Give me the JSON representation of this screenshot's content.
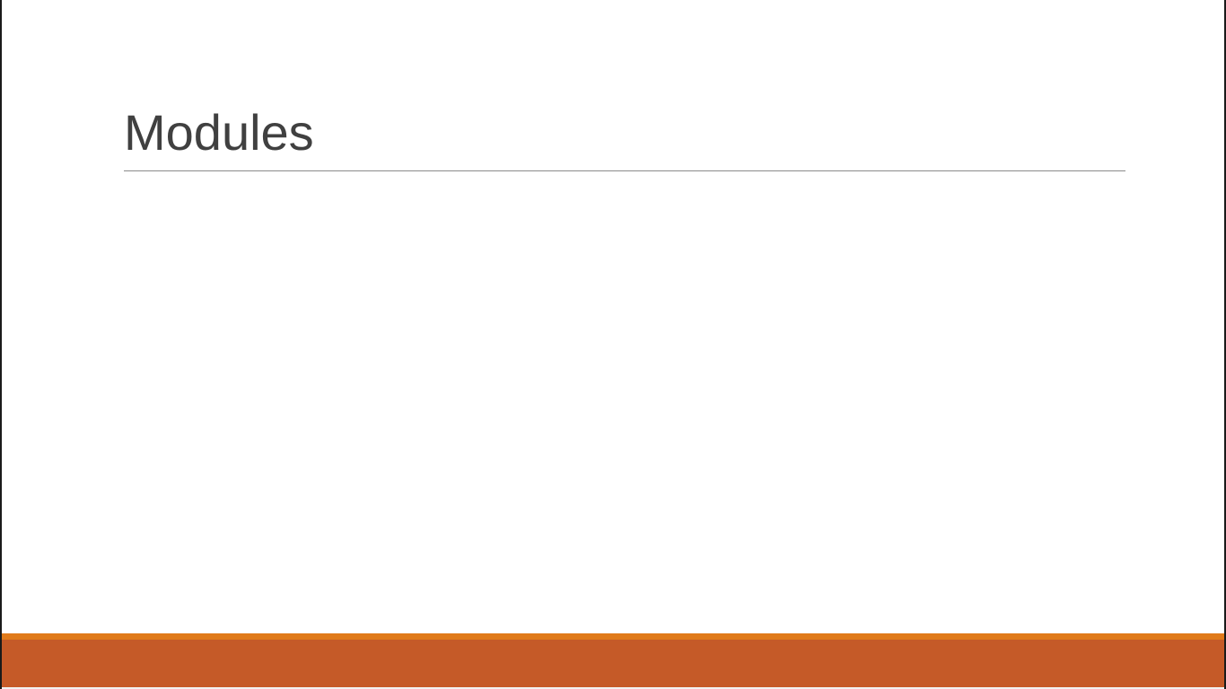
{
  "slide": {
    "title": "Modules"
  },
  "colors": {
    "title_text": "#404040",
    "title_rule": "#8a8a8a",
    "footer_band": "#c55a28",
    "footer_accent": "#e07a1a",
    "background": "#ffffff"
  }
}
